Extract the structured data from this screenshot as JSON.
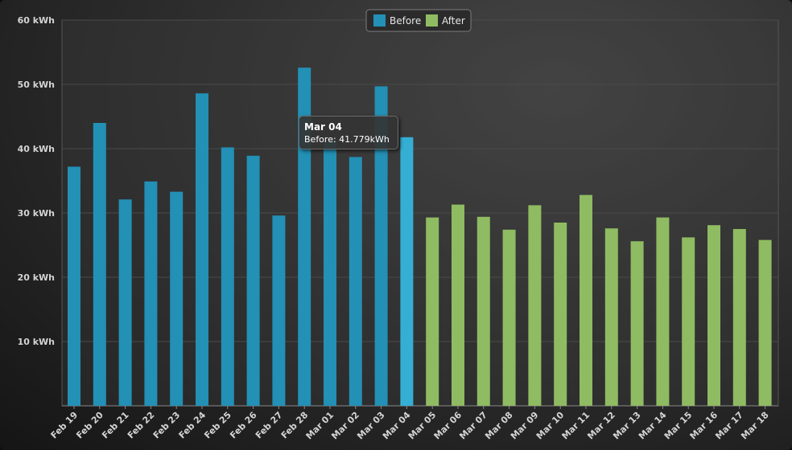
{
  "chart_data": {
    "type": "bar",
    "title": "",
    "xlabel": "",
    "ylabel": "",
    "ylim": [
      0,
      60
    ],
    "yticks": [
      "10 kWh",
      "20 kWh",
      "30 kWh",
      "40 kWh",
      "50 kWh",
      "60 kWh"
    ],
    "grid": true,
    "legend_position": "top-center",
    "categories": [
      "Feb 19",
      "Feb 20",
      "Feb 21",
      "Feb 22",
      "Feb 23",
      "Feb 24",
      "Feb 25",
      "Feb 26",
      "Feb 27",
      "Feb 28",
      "Mar 01",
      "Mar 02",
      "Mar 03",
      "Mar 04",
      "Mar 05",
      "Mar 06",
      "Mar 07",
      "Mar 08",
      "Mar 09",
      "Mar 10",
      "Mar 11",
      "Mar 12",
      "Mar 13",
      "Mar 14",
      "Mar 15",
      "Mar 16",
      "Mar 17",
      "Mar 18"
    ],
    "series": [
      {
        "name": "Before",
        "color": "#2390b5",
        "values": [
          37.2,
          44.0,
          32.1,
          34.9,
          33.3,
          48.6,
          40.2,
          38.9,
          29.6,
          52.6,
          41.2,
          38.7,
          49.7,
          41.779,
          null,
          null,
          null,
          null,
          null,
          null,
          null,
          null,
          null,
          null,
          null,
          null,
          null,
          null
        ]
      },
      {
        "name": "After",
        "color": "#8fbb62",
        "values": [
          null,
          null,
          null,
          null,
          null,
          null,
          null,
          null,
          null,
          null,
          null,
          null,
          null,
          null,
          29.3,
          31.3,
          29.4,
          27.4,
          31.2,
          28.5,
          32.8,
          27.6,
          25.6,
          29.3,
          26.2,
          28.1,
          27.5,
          25.8
        ]
      }
    ],
    "tooltip": {
      "title": "Mar 04",
      "text": "Before: 41.779kWh",
      "category": "Mar 04"
    }
  }
}
